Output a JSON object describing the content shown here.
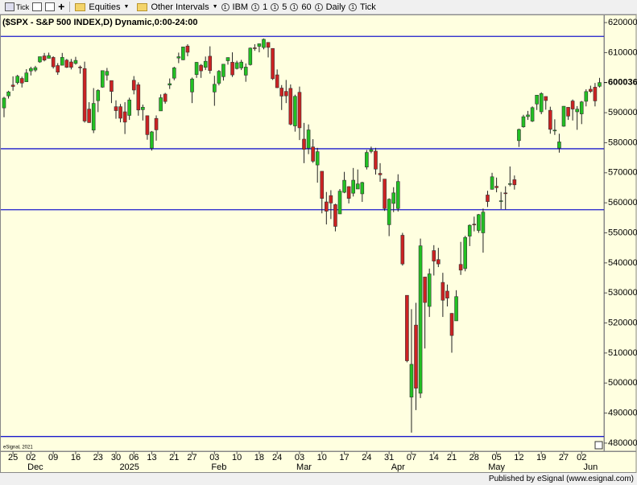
{
  "toolbar": {
    "items": [
      "Tick",
      "Equities",
      "Other Intervals",
      "IBM",
      "1",
      "5",
      "60",
      "Daily",
      "Tick"
    ]
  },
  "chart_data": {
    "type": "candlestick",
    "title": "($SPX - S&P 500 INDEX,D) Dynamic,0:00-24:00",
    "watermark": "eSignal, 2021",
    "footer": "Published by eSignal (www.esignal.com)",
    "up_color": "#22c022",
    "down_color": "#cc2222",
    "line_color": "#1a1acc",
    "categories": [
      null,
      null,
      "25",
      null,
      null,
      null,
      "02",
      null,
      null,
      null,
      null,
      "09",
      null,
      null,
      null,
      null,
      "16",
      null,
      null,
      null,
      null,
      "23",
      null,
      null,
      null,
      "30",
      null,
      null,
      null,
      "06",
      null,
      null,
      null,
      "13",
      null,
      null,
      null,
      null,
      "21",
      null,
      null,
      null,
      "27",
      null,
      null,
      null,
      null,
      "03",
      null,
      null,
      null,
      null,
      "10",
      null,
      null,
      null,
      null,
      "18",
      null,
      null,
      null,
      "24",
      null,
      null,
      null,
      null,
      "03",
      null,
      null,
      null,
      null,
      "10",
      null,
      null,
      null,
      null,
      "17",
      null,
      null,
      null,
      null,
      "24",
      null,
      null,
      null,
      null,
      "31",
      null,
      null,
      null,
      null,
      "07",
      null,
      null,
      null,
      null,
      "14",
      null,
      null,
      null,
      "21",
      null,
      null,
      null,
      null,
      "28",
      null,
      null,
      null,
      null,
      "05",
      null,
      null,
      null,
      null,
      "12",
      null,
      null,
      null,
      null,
      "19",
      null,
      null,
      null,
      null,
      "27",
      null,
      null,
      null,
      "02",
      null,
      null,
      null,
      null
    ],
    "month_labels": [
      {
        "value": 7,
        "label": "Dec"
      },
      {
        "value": 28,
        "label": "2025"
      },
      {
        "value": 48,
        "label": "Feb"
      },
      {
        "value": 67,
        "label": "Mar"
      },
      {
        "value": 88,
        "label": "Apr"
      },
      {
        "value": 110,
        "label": "May"
      },
      {
        "value": 131,
        "label": "Jun"
      }
    ],
    "open": [
      5916,
      5956,
      5992,
      6000,
      6014,
      6003,
      6039,
      6042,
      6069,
      6089,
      6081,
      6084,
      6057,
      6058,
      6075,
      6069,
      6064,
      6052,
      6047,
      5912,
      5842,
      5940,
      5985,
      6025,
      6007,
      5920,
      5920,
      5903,
      5891,
      6008,
      5993,
      5910,
      5890,
      5782,
      5881,
      5906,
      5962,
      5992,
      6015,
      6082,
      6076,
      6122,
      5969,
      6027,
      6058,
      6051,
      6088,
      5969,
      5998,
      6020,
      6073,
      6068,
      6047,
      6049,
      6025,
      6060,
      6116,
      6121,
      6117,
      6134,
      6114,
      6026,
      5982,
      5971,
      5981,
      5856,
      5968,
      5812,
      5782,
      5786,
      5726,
      5705,
      5603,
      5624,
      5594,
      5563,
      5635,
      5654,
      5632,
      5646,
      5630,
      5719,
      5771,
      5772,
      5698,
      5679,
      5527,
      5598,
      5581,
      5492,
      5292,
      4953,
      5193,
      4966,
      5353,
      5255,
      5441,
      5411,
      5335,
      5306,
      5232,
      5207,
      5395,
      5381,
      5489,
      5529,
      5508,
      5500,
      5626,
      5645,
      5655,
      5606,
      5633,
      5663,
      5677,
      5807,
      5853,
      5887,
      5872,
      5929,
      5903,
      5954,
      5908,
      5841,
      5782,
      5855,
      5918,
      5939,
      5903,
      5896,
      5938,
      5978,
      5985,
      5988
    ],
    "high": [
      5953,
      5973,
      6021,
      6026,
      6020,
      6045,
      6053,
      6056,
      6086,
      6099,
      6100,
      6088,
      6065,
      6099,
      6079,
      6079,
      6086,
      6057,
      6070,
      5935,
      5982,
      5978,
      6040,
      6049,
      6007,
      5941,
      5929,
      5935,
      5950,
      6022,
      6001,
      5927,
      5891,
      5839,
      5891,
      5961,
      5966,
      6014,
      6053,
      6100,
      6118,
      6128,
      6017,
      6069,
      6062,
      6087,
      6121,
      6023,
      6042,
      6062,
      6084,
      6101,
      6073,
      6076,
      6064,
      6117,
      6128,
      6130,
      6147,
      6134,
      6114,
      6044,
      5992,
      6009,
      5994,
      5960,
      5987,
      5866,
      5861,
      5812,
      5783,
      5705,
      5636,
      5642,
      5597,
      5646,
      5703,
      5655,
      5716,
      5711,
      5670,
      5776,
      5787,
      5783,
      5732,
      5679,
      5615,
      5652,
      5695,
      5500,
      5292,
      5246,
      5267,
      5481,
      5353,
      5381,
      5459,
      5450,
      5367,
      5328,
      5233,
      5309,
      5470,
      5490,
      5528,
      5554,
      5563,
      5581,
      5640,
      5700,
      5684,
      5636,
      5655,
      5721,
      5691,
      5847,
      5893,
      5906,
      5921,
      5959,
      5968,
      5954,
      5920,
      5878,
      5830,
      5922,
      5919,
      5944,
      5922,
      5939,
      5978,
      5990,
      5999,
      6016
    ],
    "low": [
      5885,
      5947,
      5973,
      5994,
      5984,
      6003,
      6024,
      6036,
      6066,
      6071,
      6081,
      6047,
      6026,
      6058,
      6049,
      6044,
      6060,
      6030,
      5867,
      5866,
      5832,
      5902,
      5983,
      6007,
      5932,
      5880,
      5868,
      5829,
      5876,
      5961,
      5890,
      5874,
      5810,
      5774,
      5807,
      5906,
      5930,
      5979,
      6008,
      6065,
      6075,
      6088,
      5932,
      6016,
      6016,
      6042,
      6030,
      5923,
      5991,
      6007,
      6060,
      6019,
      6044,
      6042,
      6003,
      6057,
      6106,
      6101,
      6111,
      6084,
      6009,
      5982,
      5909,
      5932,
      5858,
      5837,
      5809,
      5732,
      5762,
      5733,
      5667,
      5565,
      5528,
      5546,
      5505,
      5563,
      5632,
      5598,
      5621,
      5647,
      5603,
      5711,
      5765,
      5694,
      5670,
      5573,
      5489,
      5569,
      5571,
      5391,
      5069,
      4835,
      4910,
      4950,
      5115,
      5220,
      5358,
      5386,
      5220,
      5255,
      5101,
      5207,
      5360,
      5372,
      5456,
      5505,
      5500,
      5434,
      5586,
      5644,
      5635,
      5579,
      5578,
      5655,
      5644,
      5786,
      5850,
      5876,
      5869,
      5909,
      5895,
      5910,
      5830,
      5826,
      5767,
      5853,
      5876,
      5874,
      5843,
      5862,
      5921,
      5966,
      5921,
      5984
    ],
    "close": [
      5948.7,
      5969.3,
      5987.4,
      6021.6,
      5998.7,
      6032.4,
      6047.2,
      6049.9,
      6086.5,
      6075.1,
      6090.3,
      6052.9,
      6034.9,
      6084.2,
      6051.1,
      6051.2,
      6074.1,
      6050.6,
      5872.2,
      5867.1,
      5930.9,
      5974.1,
      6040.0,
      6037.6,
      5970.8,
      5906.9,
      5881.6,
      5868.6,
      5942.5,
      5975.4,
      5909.0,
      5918.3,
      5827.0,
      5836.2,
      5842.9,
      5949.9,
      5937.3,
      5996.7,
      6049.2,
      6086.4,
      6119.0,
      6101.2,
      6012.3,
      6067.7,
      6039.3,
      6071.2,
      6040.5,
      5994.6,
      6037.9,
      6061.5,
      6083.6,
      6025.9,
      6066.4,
      6068.5,
      6051.9,
      6115.1,
      6114.6,
      6129.6,
      6144.2,
      6117.5,
      6013.1,
      5983.3,
      5955.3,
      5956.1,
      5861.6,
      5954.5,
      5849.7,
      5778.2,
      5842.6,
      5738.5,
      5770.2,
      5614.6,
      5572.1,
      5599.3,
      5521.5,
      5638.9,
      5675.1,
      5614.7,
      5675.3,
      5662.9,
      5667.6,
      5767.6,
      5776.7,
      5712.2,
      5693.3,
      5580.9,
      5611.9,
      5633.1,
      5670.9,
      5396.5,
      5074.1,
      5062.3,
      4982.8,
      5456.9,
      5268.1,
      5363.4,
      5406.0,
      5396.6,
      5275.7,
      5282.7,
      5158.2,
      5287.8,
      5375.9,
      5484.8,
      5525.2,
      5528.8,
      5560.8,
      5569.1,
      5604.1,
      5686.7,
      5650.4,
      5606.9,
      5631.3,
      5663.9,
      5659.9,
      5844.2,
      5886.6,
      5892.6,
      5916.9,
      5958.4,
      5963.6,
      5940.5,
      5844.6,
      5842.0,
      5802.8,
      5921.5,
      5888.6,
      5912.2,
      5911.7,
      5935.9,
      5970.4,
      5970.8,
      5939.3,
      6000.36
    ],
    "hlines": [
      6154,
      5780,
      5577,
      4822
    ],
    "last_price": {
      "value": 6000.36,
      "label": "600036"
    },
    "ylim": [
      4773,
      6227
    ],
    "yticks": [
      {
        "value": 4800,
        "label": "480000"
      },
      {
        "value": 4900,
        "label": "490000"
      },
      {
        "value": 5000,
        "label": "500000"
      },
      {
        "value": 5100,
        "label": "510000"
      },
      {
        "value": 5200,
        "label": "520000"
      },
      {
        "value": 5300,
        "label": "530000"
      },
      {
        "value": 5400,
        "label": "540000"
      },
      {
        "value": 5500,
        "label": "550000"
      },
      {
        "value": 5600,
        "label": "560000"
      },
      {
        "value": 5700,
        "label": "570000"
      },
      {
        "value": 5800,
        "label": "580000"
      },
      {
        "value": 5900,
        "label": "590000"
      },
      {
        "value": 6100,
        "label": "610000"
      },
      {
        "value": 6200,
        "label": "620000"
      }
    ]
  }
}
